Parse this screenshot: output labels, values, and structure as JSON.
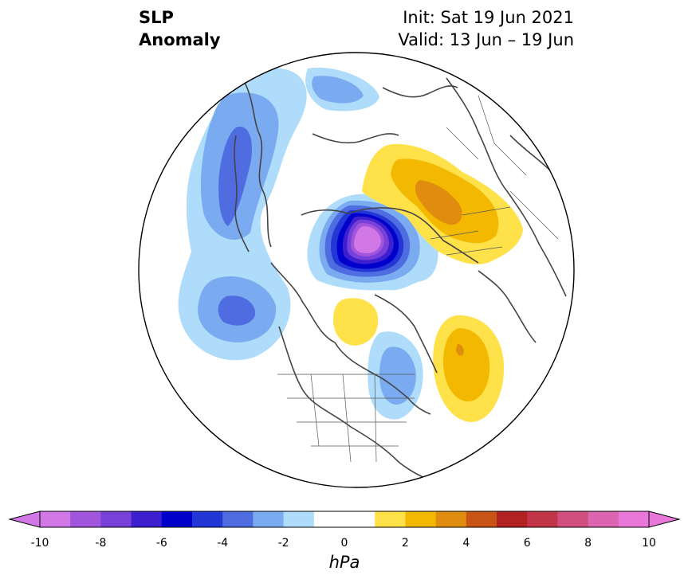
{
  "title": {
    "left_line1": "SLP",
    "left_line2": "Anomaly",
    "init": "Init: Sat 19 Jun 2021",
    "valid": "Valid: 13 Jun – 19 Jun"
  },
  "map": {
    "projection": "north-polar-stereographic",
    "variable": "SLP anomaly"
  },
  "colorbar": {
    "label": "hPa",
    "ticks": [
      "-10",
      "-8",
      "-6",
      "-4",
      "-2",
      "0",
      "2",
      "4",
      "6",
      "8",
      "10"
    ],
    "levels": [
      -10,
      -9,
      -8,
      -7,
      -6,
      -5,
      -4,
      -3,
      -2,
      -1,
      1,
      2,
      3,
      4,
      5,
      6,
      7,
      8,
      9,
      10
    ],
    "colors": [
      "#d277e6",
      "#a154dc",
      "#7640d9",
      "#3d1fd0",
      "#0000cc",
      "#2336d6",
      "#4f6de0",
      "#7aaaf0",
      "#aedcfa",
      "#ffffff",
      "#ffffff",
      "#ffe14a",
      "#f2b900",
      "#e08c0e",
      "#c85418",
      "#b22222",
      "#c23548",
      "#d04f7f",
      "#dd64b0",
      "#e877d8"
    ],
    "under_color": "#d277e6",
    "over_color": "#e877d8"
  },
  "anomaly_features": [
    {
      "name": "Pacific negative anomaly",
      "sign": "negative",
      "peak_hpa": -4
    },
    {
      "name": "Arctic low center",
      "sign": "negative",
      "peak_hpa": -10
    },
    {
      "name": "Eurasia positive anomaly",
      "sign": "positive",
      "peak_hpa": 4
    },
    {
      "name": "North Atlantic positive anomaly",
      "sign": "positive",
      "peak_hpa": 4
    },
    {
      "name": "Hudson Bay positive anomaly",
      "sign": "positive",
      "peak_hpa": 2
    },
    {
      "name": "Northeast North America negative anomaly",
      "sign": "negative",
      "peak_hpa": -3
    }
  ]
}
